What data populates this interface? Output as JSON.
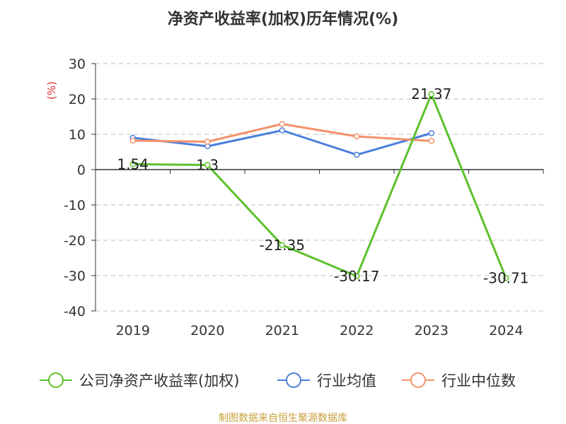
{
  "chart_data": {
    "type": "line",
    "title": "净资产收益率(加权)历年情况(%)",
    "ylabel": "(%)",
    "xlabel": "",
    "categories": [
      "2019",
      "2020",
      "2021",
      "2022",
      "2023",
      "2024"
    ],
    "ylim": [
      -40,
      30
    ],
    "yticks": [
      30,
      20,
      10,
      0,
      -10,
      -20,
      -30,
      -40
    ],
    "grid": true,
    "legend_position": "bottom",
    "series": [
      {
        "name": "公司净资产收益率(加权)",
        "color": "#5cc12b",
        "values": [
          1.54,
          1.3,
          -21.35,
          -30.17,
          21.37,
          -30.71
        ],
        "labels": [
          "1.54",
          "1.3",
          "-21.35",
          "-30.17",
          "21.37",
          "-30.71"
        ]
      },
      {
        "name": "行业均值",
        "color": "#4a7fdc",
        "values": [
          9.0,
          6.6,
          11.1,
          4.2,
          10.3,
          null
        ],
        "labels": []
      },
      {
        "name": "行业中位数",
        "color": "#f4926a",
        "values": [
          8.2,
          7.9,
          12.9,
          9.4,
          8.1,
          null
        ],
        "labels": []
      }
    ]
  },
  "source": "制图数据来自恒生聚源数据库",
  "colors": {
    "title": "#333333",
    "axis_text": "#333333",
    "ylabel": "#e03030",
    "grid": "#cccccc",
    "axis_line": "#333333",
    "source": "#c8a03c"
  }
}
